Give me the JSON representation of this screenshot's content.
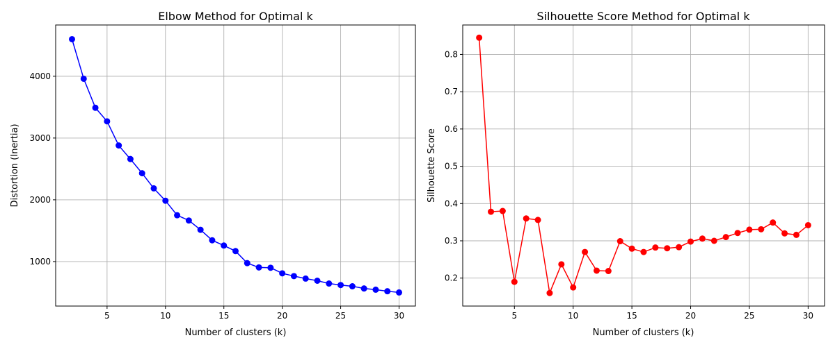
{
  "chart_data": [
    {
      "type": "line",
      "title": "Elbow Method for Optimal k",
      "xlabel": "Number of clusters (k)",
      "ylabel": "Distortion (Inertia)",
      "xlim": [
        0.6,
        31.4
      ],
      "ylim": [
        280,
        4830
      ],
      "xticks": [
        5,
        10,
        15,
        20,
        25,
        30
      ],
      "yticks": [
        1000,
        2000,
        3000,
        4000
      ],
      "grid": true,
      "color": "#0000ff",
      "marker": "circle",
      "x": [
        2,
        3,
        4,
        5,
        6,
        7,
        8,
        9,
        10,
        11,
        12,
        13,
        14,
        15,
        16,
        17,
        18,
        19,
        20,
        21,
        22,
        23,
        24,
        25,
        26,
        27,
        28,
        29,
        30
      ],
      "y": [
        4600,
        3960,
        3490,
        3270,
        2880,
        2660,
        2430,
        2185,
        1985,
        1750,
        1665,
        1515,
        1345,
        1260,
        1170,
        975,
        905,
        900,
        810,
        765,
        725,
        690,
        645,
        620,
        600,
        565,
        545,
        520,
        500
      ]
    },
    {
      "type": "line",
      "title": "Silhouette Score Method for Optimal k",
      "xlabel": "Number of clusters (k)",
      "ylabel": "Silhouette Score",
      "xlim": [
        0.6,
        31.4
      ],
      "ylim": [
        0.125,
        0.879
      ],
      "xticks": [
        5,
        10,
        15,
        20,
        25,
        30
      ],
      "yticks": [
        0.2,
        0.3,
        0.4,
        0.5,
        0.6,
        0.7,
        0.8
      ],
      "grid": true,
      "color": "#ff0000",
      "marker": "circle",
      "x": [
        2,
        3,
        4,
        5,
        6,
        7,
        8,
        9,
        10,
        11,
        12,
        13,
        14,
        15,
        16,
        17,
        18,
        19,
        20,
        21,
        22,
        23,
        24,
        25,
        26,
        27,
        28,
        29,
        30
      ],
      "y": [
        0.845,
        0.378,
        0.38,
        0.19,
        0.36,
        0.356,
        0.16,
        0.237,
        0.175,
        0.27,
        0.22,
        0.219,
        0.299,
        0.279,
        0.27,
        0.282,
        0.28,
        0.283,
        0.298,
        0.306,
        0.3,
        0.31,
        0.321,
        0.33,
        0.331,
        0.349,
        0.32,
        0.316,
        0.342
      ]
    }
  ]
}
